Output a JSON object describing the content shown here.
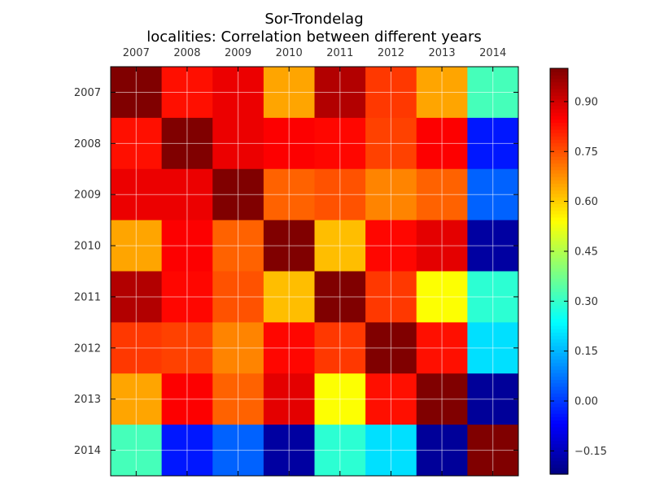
{
  "chart_data": {
    "type": "heatmap",
    "title": [
      "Sor-Trondelag",
      "localities: Correlation between different years"
    ],
    "x_categories": [
      "2007",
      "2008",
      "2009",
      "2010",
      "2011",
      "2012",
      "2013",
      "2014"
    ],
    "y_categories": [
      "2007",
      "2008",
      "2009",
      "2010",
      "2011",
      "2012",
      "2013",
      "2014"
    ],
    "x_axis_position": "top",
    "grid": true,
    "colormap": "jet",
    "color_range": [
      -0.22,
      1.0
    ],
    "values": [
      [
        1.0,
        0.83,
        0.87,
        0.65,
        0.94,
        0.78,
        0.65,
        0.32
      ],
      [
        0.83,
        1.0,
        0.87,
        0.85,
        0.84,
        0.77,
        0.85,
        -0.04
      ],
      [
        0.87,
        0.87,
        1.0,
        0.73,
        0.75,
        0.69,
        0.73,
        0.05
      ],
      [
        0.65,
        0.85,
        0.73,
        1.0,
        0.62,
        0.84,
        0.88,
        -0.18
      ],
      [
        0.94,
        0.84,
        0.75,
        0.62,
        1.0,
        0.78,
        0.54,
        0.29
      ],
      [
        0.78,
        0.77,
        0.69,
        0.84,
        0.78,
        1.0,
        0.83,
        0.2
      ],
      [
        0.65,
        0.85,
        0.73,
        0.88,
        0.54,
        0.83,
        1.0,
        -0.19
      ],
      [
        0.32,
        -0.04,
        0.05,
        -0.18,
        0.29,
        0.2,
        -0.19,
        1.0
      ]
    ],
    "colorbar": {
      "ticks": [
        0.9,
        0.75,
        0.6,
        0.45,
        0.3,
        0.15,
        0.0,
        -0.15
      ],
      "tick_labels": [
        "0.90",
        "0.75",
        "0.60",
        "0.45",
        "0.30",
        "0.15",
        "0.00",
        "−0.15"
      ]
    }
  }
}
